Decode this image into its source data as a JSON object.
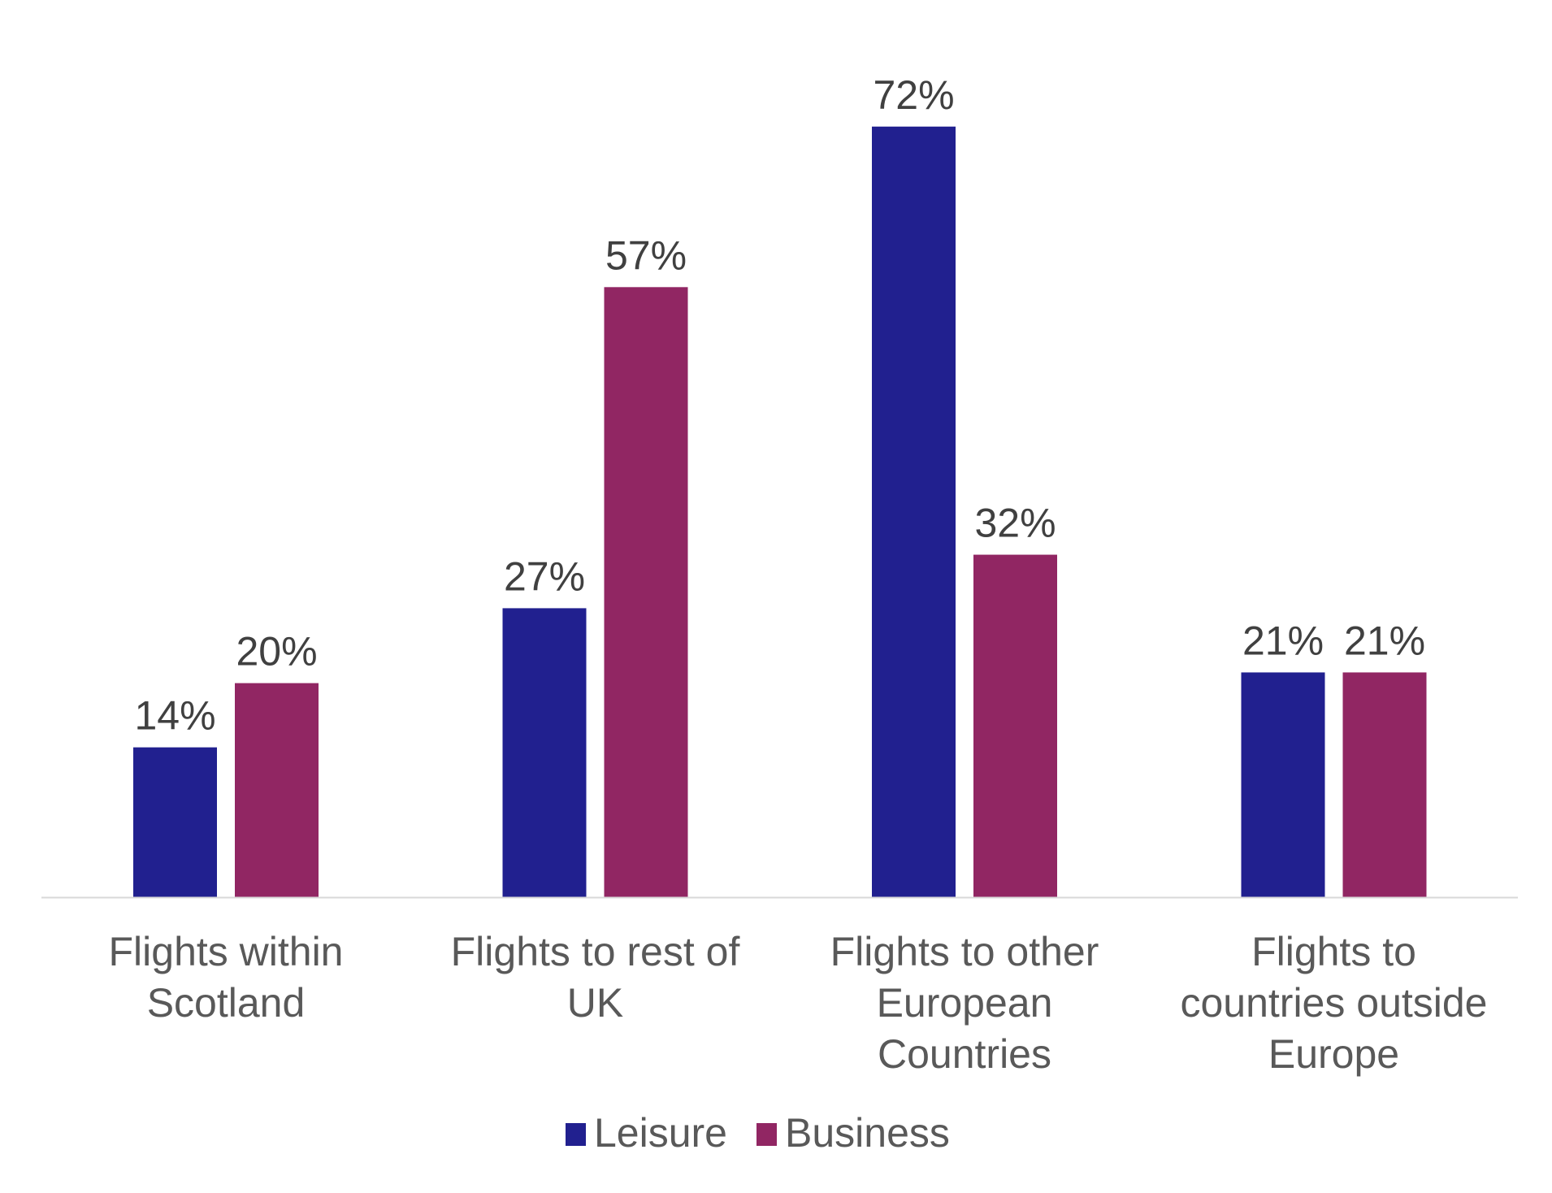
{
  "chart_data": {
    "type": "bar",
    "title": "",
    "xlabel": "",
    "ylabel": "",
    "ylim": [
      0,
      72
    ],
    "grid": false,
    "legend_position": "bottom",
    "categories": [
      [
        "Flights within",
        "Scotland"
      ],
      [
        "Flights to rest of",
        "UK"
      ],
      [
        "Flights to other",
        "European",
        "Countries"
      ],
      [
        "Flights to",
        "countries outside",
        "Europe"
      ]
    ],
    "series": [
      {
        "name": "Leisure",
        "color": "#21208F",
        "values": [
          14,
          27,
          72,
          21
        ],
        "labels": [
          "14%",
          "27%",
          "72%",
          "21%"
        ]
      },
      {
        "name": "Business",
        "color": "#912663",
        "values": [
          20,
          57,
          32,
          21
        ],
        "labels": [
          "20%",
          "57%",
          "32%",
          "21%"
        ]
      }
    ]
  }
}
